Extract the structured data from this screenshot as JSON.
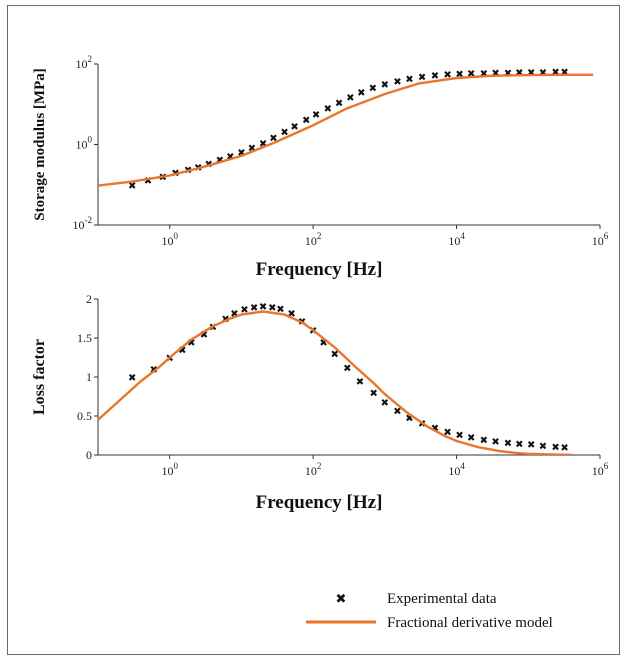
{
  "chart_data": [
    {
      "type": "scatter",
      "title": "",
      "xlabel": "Frequency [Hz]",
      "ylabel": "Storage modulus [MPa]",
      "xscale": "log",
      "yscale": "log",
      "xlim": [
        0.1,
        1000000
      ],
      "ylim": [
        0.01,
        100
      ],
      "xticks": [
        {
          "value": 1,
          "base": "10",
          "exp": "0"
        },
        {
          "value": 100,
          "base": "10",
          "exp": "2"
        },
        {
          "value": 10000,
          "base": "10",
          "exp": "4"
        },
        {
          "value": 1000000,
          "base": "10",
          "exp": "6"
        }
      ],
      "yticks": [
        {
          "value": 0.01,
          "base": "10",
          "exp": "-2"
        },
        {
          "value": 1,
          "base": "10",
          "exp": "0"
        },
        {
          "value": 100,
          "base": "10",
          "exp": "2"
        }
      ],
      "series": [
        {
          "kind": "markers",
          "color": "#111111",
          "x": [
            0.3,
            0.5,
            0.8,
            1.2,
            1.8,
            2.5,
            3.5,
            5,
            7,
            10,
            14,
            20,
            28,
            40,
            55,
            80,
            110,
            160,
            230,
            330,
            470,
            680,
            1000,
            1500,
            2200,
            3300,
            5000,
            7500,
            11000,
            16000,
            24000,
            35000,
            52000,
            75000,
            110000,
            160000,
            240000,
            320000
          ],
          "y": [
            0.1,
            0.13,
            0.16,
            0.2,
            0.24,
            0.28,
            0.34,
            0.42,
            0.52,
            0.65,
            0.85,
            1.1,
            1.5,
            2.1,
            2.9,
            4.2,
            5.8,
            8,
            11,
            15,
            20,
            26,
            32,
            38,
            44,
            49,
            53,
            56,
            58,
            59,
            60,
            61,
            62,
            63,
            64,
            64,
            65,
            65
          ]
        },
        {
          "kind": "line",
          "color": "#e8762b",
          "x": [
            0.1,
            0.3,
            1,
            3,
            10,
            30,
            100,
            300,
            1000,
            3000,
            10000,
            30000,
            100000,
            300000,
            800000
          ],
          "y": [
            0.095,
            0.12,
            0.17,
            0.28,
            0.52,
            1.15,
            3,
            8,
            18,
            33,
            45,
            51,
            53,
            54,
            54
          ]
        }
      ]
    },
    {
      "type": "scatter",
      "title": "",
      "xlabel": "Frequency [Hz]",
      "ylabel": "Loss factor",
      "xscale": "log",
      "yscale": "linear",
      "xlim": [
        0.1,
        1000000
      ],
      "ylim": [
        0,
        2
      ],
      "xticks": [
        {
          "value": 1,
          "base": "10",
          "exp": "0"
        },
        {
          "value": 100,
          "base": "10",
          "exp": "2"
        },
        {
          "value": 10000,
          "base": "10",
          "exp": "4"
        },
        {
          "value": 1000000,
          "base": "10",
          "exp": "6"
        }
      ],
      "yticks": [
        {
          "value": 0,
          "label": "0"
        },
        {
          "value": 0.5,
          "label": "0.5"
        },
        {
          "value": 1,
          "label": "1"
        },
        {
          "value": 1.5,
          "label": "1.5"
        },
        {
          "value": 2,
          "label": "2"
        }
      ],
      "series": [
        {
          "kind": "markers",
          "color": "#111111",
          "x": [
            0.3,
            0.6,
            1,
            1.5,
            2,
            3,
            4,
            6,
            8,
            11,
            15,
            20,
            27,
            35,
            50,
            70,
            100,
            140,
            200,
            300,
            450,
            700,
            1000,
            1500,
            2200,
            3300,
            5000,
            7500,
            11000,
            16000,
            24000,
            35000,
            52000,
            75000,
            110000,
            160000,
            240000,
            320000
          ],
          "y": [
            1,
            1.1,
            1.25,
            1.35,
            1.45,
            1.55,
            1.65,
            1.75,
            1.82,
            1.87,
            1.9,
            1.91,
            1.9,
            1.88,
            1.82,
            1.72,
            1.6,
            1.45,
            1.3,
            1.12,
            0.95,
            0.8,
            0.68,
            0.57,
            0.48,
            0.41,
            0.35,
            0.3,
            0.26,
            0.23,
            0.2,
            0.18,
            0.16,
            0.15,
            0.14,
            0.12,
            0.11,
            0.1
          ]
        },
        {
          "kind": "line",
          "color": "#e8762b",
          "x": [
            0.1,
            0.2,
            0.4,
            0.7,
            1,
            2,
            4,
            7,
            10,
            20,
            40,
            70,
            100,
            200,
            400,
            700,
            1000,
            2000,
            4000,
            7000,
            10000,
            20000,
            40000,
            70000,
            100000,
            200000,
            400000
          ],
          "y": [
            0.45,
            0.7,
            0.95,
            1.12,
            1.25,
            1.48,
            1.65,
            1.75,
            1.8,
            1.84,
            1.8,
            1.7,
            1.6,
            1.38,
            1.12,
            0.92,
            0.78,
            0.55,
            0.36,
            0.24,
            0.18,
            0.1,
            0.05,
            0.025,
            0.015,
            0.006,
            0.002
          ]
        }
      ]
    }
  ],
  "legend": {
    "items": [
      {
        "label": "Experimental data",
        "marker": "x",
        "color": "#111111"
      },
      {
        "label": "Fractional derivative model",
        "marker": "line",
        "color": "#e8762b"
      }
    ]
  }
}
